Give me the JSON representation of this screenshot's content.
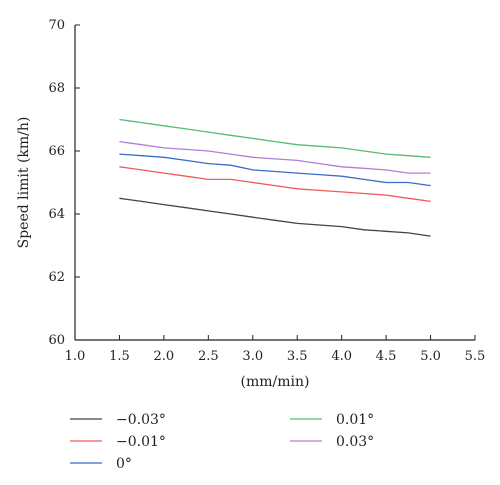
{
  "chart_data": {
    "type": "line",
    "xlabel": "(mm/min)",
    "ylabel": "Speed limit (km/h)",
    "xlim": [
      1.0,
      5.5
    ],
    "ylim": [
      60,
      70
    ],
    "x_ticks": [
      "1.0",
      "1.5",
      "2.0",
      "2.5",
      "3.0",
      "3.5",
      "4.0",
      "4.5",
      "5.0",
      "5.5"
    ],
    "y_ticks": [
      "60",
      "62",
      "64",
      "66",
      "68",
      "70"
    ],
    "legend_position": "bottom",
    "grid": false,
    "x": [
      1.5,
      1.75,
      2.0,
      2.25,
      2.5,
      2.75,
      3.0,
      3.25,
      3.5,
      3.75,
      4.0,
      4.25,
      4.5,
      4.75,
      5.0
    ],
    "series": [
      {
        "name": "−0.03°",
        "color": "#444444",
        "values": [
          64.5,
          64.4,
          64.3,
          64.2,
          64.1,
          64.0,
          63.9,
          63.8,
          63.7,
          63.65,
          63.6,
          63.5,
          63.45,
          63.4,
          63.3
        ]
      },
      {
        "name": "−0.01°",
        "color": "#ef5a5a",
        "values": [
          65.5,
          65.4,
          65.3,
          65.2,
          65.1,
          65.1,
          65.0,
          64.9,
          64.8,
          64.75,
          64.7,
          64.65,
          64.6,
          64.5,
          64.4
        ]
      },
      {
        "name": "0°",
        "color": "#3a6cc4",
        "values": [
          65.9,
          65.85,
          65.8,
          65.7,
          65.6,
          65.55,
          65.4,
          65.35,
          65.3,
          65.25,
          65.2,
          65.1,
          65.0,
          65.0,
          64.9
        ]
      },
      {
        "name": "0.01°",
        "color": "#55bb77",
        "values": [
          67.0,
          66.9,
          66.8,
          66.7,
          66.6,
          66.5,
          66.4,
          66.3,
          66.2,
          66.15,
          66.1,
          66.0,
          65.9,
          65.85,
          65.8
        ]
      },
      {
        "name": "0.03°",
        "color": "#b07fd6",
        "values": [
          66.3,
          66.2,
          66.1,
          66.05,
          66.0,
          65.9,
          65.8,
          65.75,
          65.7,
          65.6,
          65.5,
          65.45,
          65.4,
          65.3,
          65.3
        ]
      }
    ]
  }
}
